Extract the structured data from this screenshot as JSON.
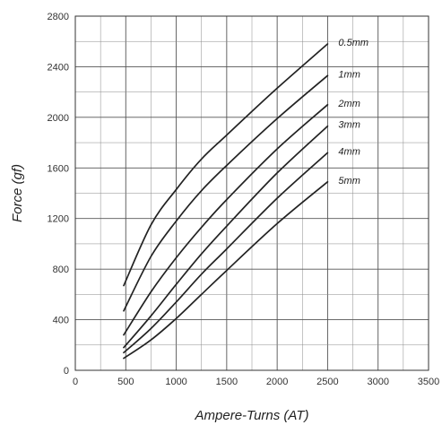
{
  "chart_data": {
    "type": "line",
    "title": "",
    "xlabel": "Ampere-Turns (AT)",
    "ylabel": "Force (gf)",
    "xlim": [
      0,
      3500
    ],
    "ylim": [
      0,
      2800
    ],
    "x_ticks": [
      0,
      500,
      1000,
      1500,
      2000,
      2500,
      3000,
      3500
    ],
    "y_ticks": [
      0,
      400,
      800,
      1200,
      1600,
      2000,
      2400,
      2800
    ],
    "grid": true,
    "legend": "labels-at-line-ends",
    "line_color": "#222222",
    "series": [
      {
        "name": "0.5mm",
        "x": [
          480,
          750,
          1000,
          1250,
          1500,
          2000,
          2500
        ],
        "y": [
          670,
          1150,
          1430,
          1670,
          1860,
          2230,
          2580
        ]
      },
      {
        "name": "1mm",
        "x": [
          480,
          750,
          1000,
          1250,
          1500,
          2000,
          2500
        ],
        "y": [
          470,
          900,
          1180,
          1420,
          1620,
          1990,
          2330
        ]
      },
      {
        "name": "2mm",
        "x": [
          480,
          750,
          1000,
          1250,
          1500,
          2000,
          2500
        ],
        "y": [
          280,
          620,
          890,
          1130,
          1350,
          1750,
          2100
        ]
      },
      {
        "name": "3mm",
        "x": [
          480,
          750,
          1000,
          1250,
          1500,
          2000,
          2500
        ],
        "y": [
          180,
          430,
          680,
          920,
          1140,
          1560,
          1930
        ]
      },
      {
        "name": "4mm",
        "x": [
          480,
          750,
          1000,
          1250,
          1500,
          2000,
          2500
        ],
        "y": [
          140,
          330,
          540,
          760,
          960,
          1360,
          1720
        ]
      },
      {
        "name": "5mm",
        "x": [
          480,
          750,
          1000,
          1250,
          1500,
          2000,
          2500
        ],
        "y": [
          95,
          240,
          410,
          600,
          790,
          1160,
          1490
        ]
      }
    ]
  }
}
